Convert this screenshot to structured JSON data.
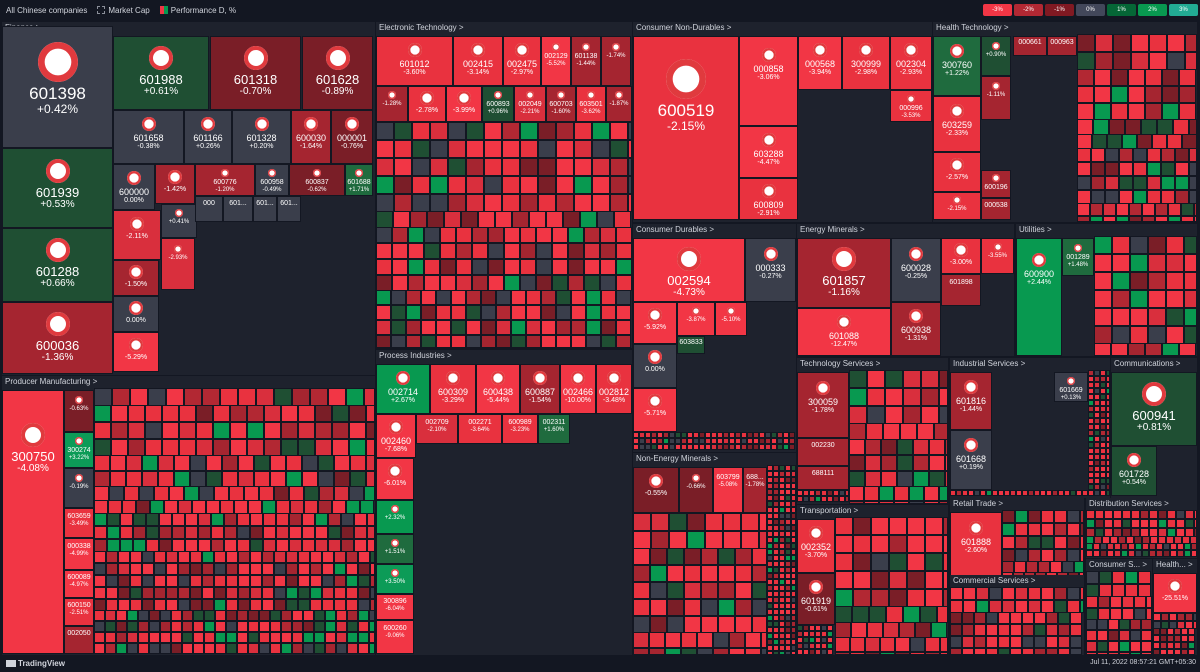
{
  "toolbar": {
    "universe": "All Chinese companies",
    "size_by": "Market Cap",
    "color_by": "Performance D, %"
  },
  "legend": [
    {
      "label": "-3%",
      "color": "#f23645"
    },
    {
      "label": "-2%",
      "color": "#b22833"
    },
    {
      "label": "-1%",
      "color": "#801922"
    },
    {
      "label": "0%",
      "color": "#42475a"
    },
    {
      "label": "1%",
      "color": "#056636"
    },
    {
      "label": "2%",
      "color": "#089950"
    },
    {
      "label": "3%",
      "color": "#22ab94"
    }
  ],
  "footer": {
    "brand": "TradingView",
    "timestamp": "Jul 11, 2022 08:57:21 GMT+05:30"
  },
  "sectors": [
    {
      "name": "Finance >",
      "tiles": [
        {
          "ticker": "601398",
          "perf": "+0.42%",
          "color": "#3a3e4b",
          "logo": "bank"
        },
        {
          "ticker": "601988",
          "perf": "+0.61%",
          "color": "#1f4f33",
          "logo": "bank"
        },
        {
          "ticker": "601318",
          "perf": "-0.70%",
          "color": "#7a1e27",
          "logo": "insurance"
        },
        {
          "ticker": "601628",
          "perf": "-0.89%",
          "color": "#7a1e27",
          "logo": "insurance"
        },
        {
          "ticker": "601939",
          "perf": "+0.53%",
          "color": "#1f4f33",
          "logo": "bank"
        },
        {
          "ticker": "601658",
          "perf": "-0.38%",
          "color": "#3a3e4b",
          "logo": "bank"
        },
        {
          "ticker": "601166",
          "perf": "+0.26%",
          "color": "#3a3e4b",
          "logo": "bank"
        },
        {
          "ticker": "601328",
          "perf": "+0.20%",
          "color": "#3a3e4b",
          "logo": "bank"
        },
        {
          "ticker": "600030",
          "perf": "-1.64%",
          "color": "#a52530",
          "logo": "broker"
        },
        {
          "ticker": "000001",
          "perf": "-0.76%",
          "color": "#7a1e27",
          "logo": "bank"
        },
        {
          "ticker": "601288",
          "perf": "+0.66%",
          "color": "#1f4f33",
          "logo": "bank"
        },
        {
          "ticker": "600000",
          "perf": "0.00%",
          "color": "#3a3e4b",
          "logo": "bank"
        },
        {
          "ticker": "",
          "perf": "-1.42%",
          "color": "#a52530",
          "logo": "bank"
        },
        {
          "ticker": "600776",
          "perf": "-1.20%",
          "color": "#a52530",
          "logo": "broker"
        },
        {
          "ticker": "600958",
          "perf": "-0.49%",
          "color": "#3a3e4b",
          "logo": "broker"
        },
        {
          "ticker": "600837",
          "perf": "-0.62%",
          "color": "#7a1e27",
          "logo": "broker"
        },
        {
          "ticker": "601688",
          "perf": "+1.71%",
          "color": "#1f6b3e",
          "logo": "broker"
        },
        {
          "ticker": "600036",
          "perf": "-1.36%",
          "color": "#a52530",
          "logo": "bank"
        },
        {
          "ticker": "",
          "perf": "-2.11%",
          "color": "#d92f3d",
          "logo": "bank"
        },
        {
          "ticker": "",
          "perf": "+0.41%",
          "color": "#3a3e4b",
          "logo": "insurance"
        },
        {
          "ticker": "",
          "perf": "-1.50%",
          "color": "#a52530",
          "logo": "realestate"
        },
        {
          "ticker": "",
          "perf": "-2.93%",
          "color": "#d92f3d",
          "logo": "broker"
        },
        {
          "ticker": "",
          "perf": "0.00%",
          "color": "#3a3e4b",
          "logo": "bank"
        },
        {
          "ticker": "",
          "perf": "-5.29%",
          "color": "#f23645",
          "logo": "broker"
        },
        {
          "ticker": "000",
          "perf": "",
          "color": "#3a3e4b",
          "logo": ""
        },
        {
          "ticker": "601...",
          "perf": "",
          "color": "#3a3e4b",
          "logo": ""
        },
        {
          "ticker": "601...",
          "perf": "",
          "color": "#3a3e4b",
          "logo": ""
        },
        {
          "ticker": "601...",
          "perf": "",
          "color": "#3a3e4b",
          "logo": ""
        }
      ]
    },
    {
      "name": "Electronic Technology >",
      "tiles": [
        {
          "ticker": "601012",
          "perf": "-3.60%",
          "color": "#e9323f",
          "logo": "solar"
        },
        {
          "ticker": "002415",
          "perf": "-3.14%",
          "color": "#e9323f",
          "logo": "camera"
        },
        {
          "ticker": "002475",
          "perf": "-2.97%",
          "color": "#e9323f",
          "logo": "chip"
        },
        {
          "ticker": "002129",
          "perf": "-5.52%",
          "color": "#f23645",
          "logo": "chip"
        },
        {
          "ticker": "601138",
          "perf": "-1.44%",
          "color": "#a52530",
          "logo": "chip"
        },
        {
          "ticker": "",
          "perf": "-1.74%",
          "color": "#a52530",
          "logo": "chip"
        },
        {
          "ticker": "",
          "perf": "-1.28%",
          "color": "#a52530",
          "logo": "chip"
        },
        {
          "ticker": "",
          "perf": "-2.78%",
          "color": "#e9323f",
          "logo": "chip"
        },
        {
          "ticker": "",
          "perf": "-3.99%",
          "color": "#f23645",
          "logo": "chip"
        },
        {
          "ticker": "600893",
          "perf": "+0.96%",
          "color": "#1f4f33",
          "logo": "chip"
        },
        {
          "ticker": "002049",
          "perf": "-2.21%",
          "color": "#d92f3d",
          "logo": "chip"
        },
        {
          "ticker": "600703",
          "perf": "-1.60%",
          "color": "#a52530",
          "logo": "chip"
        },
        {
          "ticker": "603501",
          "perf": "-3.62%",
          "color": "#e9323f",
          "logo": "chip"
        },
        {
          "ticker": "",
          "perf": "-1.87%",
          "color": "#a52530",
          "logo": "chip"
        }
      ]
    },
    {
      "name": "Consumer Non-Durables >",
      "tiles": [
        {
          "ticker": "600519",
          "perf": "-2.15%",
          "color": "#e9323f",
          "logo": "liquor"
        },
        {
          "ticker": "000858",
          "perf": "-3.06%",
          "color": "#f23645",
          "logo": "liquor"
        },
        {
          "ticker": "000568",
          "perf": "-3.94%",
          "color": "#f23645",
          "logo": "liquor"
        },
        {
          "ticker": "300999",
          "perf": "-2.98%",
          "color": "#e9323f",
          "logo": "food"
        },
        {
          "ticker": "002304",
          "perf": "-2.93%",
          "color": "#e9323f",
          "logo": "liquor"
        },
        {
          "ticker": "000996",
          "perf": "-3.53%",
          "color": "#e9323f",
          "logo": "food"
        },
        {
          "ticker": "603288",
          "perf": "-4.47%",
          "color": "#f23645",
          "logo": "food"
        },
        {
          "ticker": "600809",
          "perf": "-2.91%",
          "color": "#e9323f",
          "logo": "liquor"
        }
      ]
    },
    {
      "name": "Health Technology >",
      "tiles": [
        {
          "ticker": "300760",
          "perf": "+1.22%",
          "color": "#1f6b3e",
          "logo": "med"
        },
        {
          "ticker": "",
          "perf": "+0.90%",
          "color": "#1f4f33",
          "logo": "med"
        },
        {
          "ticker": "603259",
          "perf": "-2.33%",
          "color": "#e9323f",
          "logo": "med"
        },
        {
          "ticker": "",
          "perf": "-1.11%",
          "color": "#a52530",
          "logo": "med"
        },
        {
          "ticker": "",
          "perf": "-2.57%",
          "color": "#e9323f",
          "logo": "med"
        },
        {
          "ticker": "",
          "perf": "-2.15%",
          "color": "#e9323f",
          "logo": "med"
        },
        {
          "ticker": "600196",
          "perf": "",
          "color": "#a52530",
          "logo": "med"
        },
        {
          "ticker": "000538",
          "perf": "",
          "color": "#a52530",
          "logo": ""
        },
        {
          "ticker": "000661",
          "perf": "",
          "color": "#a52530",
          "logo": ""
        },
        {
          "ticker": "000963",
          "perf": "",
          "color": "#a52530",
          "logo": ""
        }
      ]
    },
    {
      "name": "Consumer Durables >",
      "tiles": [
        {
          "ticker": "002594",
          "perf": "-4.73%",
          "color": "#f23645",
          "logo": "car"
        },
        {
          "ticker": "000333",
          "perf": "-0.27%",
          "color": "#3a3e4b",
          "logo": "appliance"
        },
        {
          "ticker": "",
          "perf": "-5.92%",
          "color": "#f23645",
          "logo": "car"
        },
        {
          "ticker": "",
          "perf": "-3.87%",
          "color": "#f23645",
          "logo": "car"
        },
        {
          "ticker": "",
          "perf": "-5.10%",
          "color": "#f23645",
          "logo": "car"
        },
        {
          "ticker": "",
          "perf": "0.00%",
          "color": "#3a3e4b",
          "logo": "appliance"
        },
        {
          "ticker": "",
          "perf": "-5.71%",
          "color": "#f23645",
          "logo": "car"
        },
        {
          "ticker": "603833",
          "perf": "",
          "color": "#1f4f33",
          "logo": ""
        }
      ]
    },
    {
      "name": "Energy Minerals >",
      "tiles": [
        {
          "ticker": "601857",
          "perf": "-1.16%",
          "color": "#a52530",
          "logo": "oil"
        },
        {
          "ticker": "600028",
          "perf": "-0.25%",
          "color": "#3a3e4b",
          "logo": "oil"
        },
        {
          "ticker": "",
          "perf": "-3.00%",
          "color": "#e9323f",
          "logo": "coal"
        },
        {
          "ticker": "",
          "perf": "-3.55%",
          "color": "#e9323f",
          "logo": "coal"
        },
        {
          "ticker": "601088",
          "perf": "-12.47%",
          "color": "#f23645",
          "logo": "coal"
        },
        {
          "ticker": "600938",
          "perf": "-1.31%",
          "color": "#a52530",
          "logo": "oil"
        },
        {
          "ticker": "601898",
          "perf": "",
          "color": "#a52530",
          "logo": ""
        }
      ]
    },
    {
      "name": "Utilities >",
      "tiles": [
        {
          "ticker": "600900",
          "perf": "+2.44%",
          "color": "#089950",
          "logo": "power"
        },
        {
          "ticker": "001289",
          "perf": "+1.48%",
          "color": "#1f6b3e",
          "logo": "power"
        }
      ]
    },
    {
      "name": "Process Industries >",
      "tiles": [
        {
          "ticker": "002714",
          "perf": "+2.67%",
          "color": "#089950",
          "logo": "agri"
        },
        {
          "ticker": "600309",
          "perf": "-3.29%",
          "color": "#e9323f",
          "logo": "chem"
        },
        {
          "ticker": "600438",
          "perf": "-5.44%",
          "color": "#f23645",
          "logo": "chem"
        },
        {
          "ticker": "600887",
          "perf": "-1.54%",
          "color": "#a52530",
          "logo": "food"
        },
        {
          "ticker": "002466",
          "perf": "-10.00%",
          "color": "#f23645",
          "logo": "chem"
        },
        {
          "ticker": "002812",
          "perf": "-3.48%",
          "color": "#e9323f",
          "logo": "chem"
        },
        {
          "ticker": "002460",
          "perf": "-7.68%",
          "color": "#f23645",
          "logo": "chem"
        },
        {
          "ticker": "002709",
          "perf": "-2.10%",
          "color": "#d92f3d",
          "logo": ""
        },
        {
          "ticker": "002271",
          "perf": "-3.64%",
          "color": "#e9323f",
          "logo": ""
        },
        {
          "ticker": "600989",
          "perf": "-3.23%",
          "color": "#e9323f",
          "logo": ""
        },
        {
          "ticker": "002311",
          "perf": "+1.60%",
          "color": "#1f6b3e",
          "logo": ""
        },
        {
          "ticker": "",
          "perf": "-6.01%",
          "color": "#f23645",
          "logo": "agri"
        },
        {
          "ticker": "",
          "perf": "+2.32%",
          "color": "#089950",
          "logo": "agri"
        },
        {
          "ticker": "",
          "perf": "+1.51%",
          "color": "#1f6b3e",
          "logo": "agri"
        },
        {
          "ticker": "",
          "perf": "+3.50%",
          "color": "#0c9b57",
          "logo": "agri"
        },
        {
          "ticker": "300896",
          "perf": "-6.04%",
          "color": "#f23645",
          "logo": ""
        },
        {
          "ticker": "600260",
          "perf": "-9.06%",
          "color": "#f23645",
          "logo": ""
        }
      ]
    },
    {
      "name": "Non-Energy Minerals >",
      "tiles": [
        {
          "ticker": "",
          "perf": "-0.55%",
          "color": "#7a1e27",
          "logo": "metal"
        },
        {
          "ticker": "",
          "perf": "-0.66%",
          "color": "#7a1e27",
          "logo": "metal"
        },
        {
          "ticker": "603799",
          "perf": "-5.08%",
          "color": "#f23645",
          "logo": ""
        },
        {
          "ticker": "688...",
          "perf": "-1.78%",
          "color": "#a52530",
          "logo": ""
        }
      ]
    },
    {
      "name": "Technology Services >",
      "tiles": [
        {
          "ticker": "300059",
          "perf": "-1.78%",
          "color": "#a52530",
          "logo": "finance"
        },
        {
          "ticker": "002230",
          "perf": "",
          "color": "#a52530",
          "logo": ""
        },
        {
          "ticker": "688111",
          "perf": "",
          "color": "#a52530",
          "logo": ""
        }
      ]
    },
    {
      "name": "Industrial Services >",
      "tiles": [
        {
          "ticker": "601816",
          "perf": "-1.44%",
          "color": "#a52530",
          "logo": "rail"
        },
        {
          "ticker": "601669",
          "perf": "+0.13%",
          "color": "#3a3e4b",
          "logo": "build"
        },
        {
          "ticker": "601668",
          "perf": "+0.19%",
          "color": "#3a3e4b",
          "logo": "build"
        }
      ]
    },
    {
      "name": "Communications >",
      "tiles": [
        {
          "ticker": "600941",
          "perf": "+0.81%",
          "color": "#1f4f33",
          "logo": "telecom"
        },
        {
          "ticker": "601728",
          "perf": "+0.54%",
          "color": "#1f4f33",
          "logo": "telecom"
        }
      ]
    },
    {
      "name": "Producer Manufacturing >",
      "tiles": [
        {
          "ticker": "300750",
          "perf": "-4.08%",
          "color": "#f23645",
          "logo": "battery"
        },
        {
          "ticker": "",
          "perf": "-0.63%",
          "color": "#7a1e27",
          "logo": "machine"
        },
        {
          "ticker": "300274",
          "perf": "+3.22%",
          "color": "#0c9b57",
          "logo": "solar"
        },
        {
          "ticker": "",
          "perf": "-0.19%",
          "color": "#3a3e4b",
          "logo": "machine"
        },
        {
          "ticker": "603659",
          "perf": "-3.49%",
          "color": "#e9323f",
          "logo": ""
        },
        {
          "ticker": "000338",
          "perf": "-4.99%",
          "color": "#f23645",
          "logo": ""
        },
        {
          "ticker": "600089",
          "perf": "-4.97%",
          "color": "#f23645",
          "logo": ""
        },
        {
          "ticker": "600150",
          "perf": "-2.51%",
          "color": "#e9323f",
          "logo": ""
        },
        {
          "ticker": "002050",
          "perf": "",
          "color": "#a52530",
          "logo": ""
        }
      ]
    },
    {
      "name": "Transportation >",
      "tiles": [
        {
          "ticker": "002352",
          "perf": "-3.70%",
          "color": "#e9323f",
          "logo": "logistics"
        },
        {
          "ticker": "601919",
          "perf": "-0.61%",
          "color": "#7a1e27",
          "logo": "ship"
        }
      ]
    },
    {
      "name": "Retail Trade >",
      "tiles": [
        {
          "ticker": "601888",
          "perf": "-2.60%",
          "color": "#e9323f",
          "logo": "retail"
        }
      ]
    },
    {
      "name": "Distribution Services >",
      "tiles": []
    },
    {
      "name": "Commercial Services >",
      "tiles": []
    },
    {
      "name": "Consumer S... >",
      "tiles": []
    },
    {
      "name": "Health... >",
      "tiles": [
        {
          "ticker": "",
          "perf": "-25.51%",
          "color": "#f23645",
          "logo": "med"
        }
      ]
    }
  ]
}
